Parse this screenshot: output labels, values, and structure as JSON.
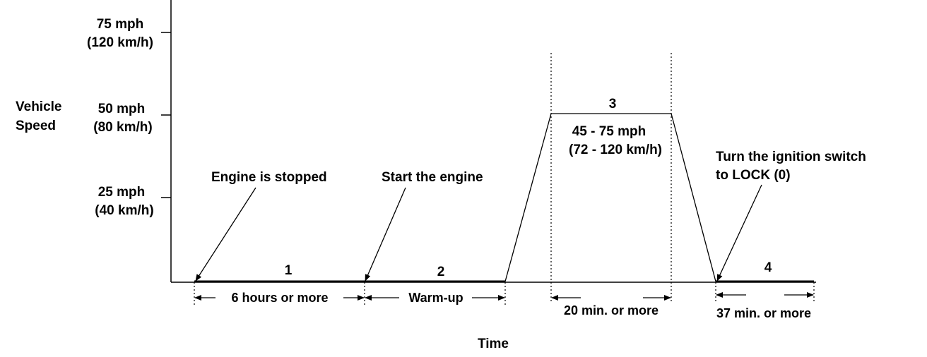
{
  "axis": {
    "y_label_line1": "Vehicle",
    "y_label_line2": "Speed",
    "x_label": "Time",
    "ticks": [
      {
        "mph": "75 mph",
        "kmh": "(120 km/h)"
      },
      {
        "mph": "50 mph",
        "kmh": "(80 km/h)"
      },
      {
        "mph": "25 mph",
        "kmh": "(40 km/h)"
      }
    ]
  },
  "phases": {
    "p1": "1",
    "p2": "2",
    "p3": "3",
    "p4": "4"
  },
  "speed_range": {
    "mph": "45 - 75 mph",
    "kmh": "(72 - 120 km/h)"
  },
  "callouts": {
    "engine_stopped": "Engine is stopped",
    "start_engine": "Start the engine",
    "ignition_line1": "Turn the ignition switch",
    "ignition_line2": "to LOCK (0)"
  },
  "durations": {
    "d1": "6 hours or more",
    "d2": "Warm-up",
    "d3": "20 min. or more",
    "d4": "37 min. or more"
  }
}
